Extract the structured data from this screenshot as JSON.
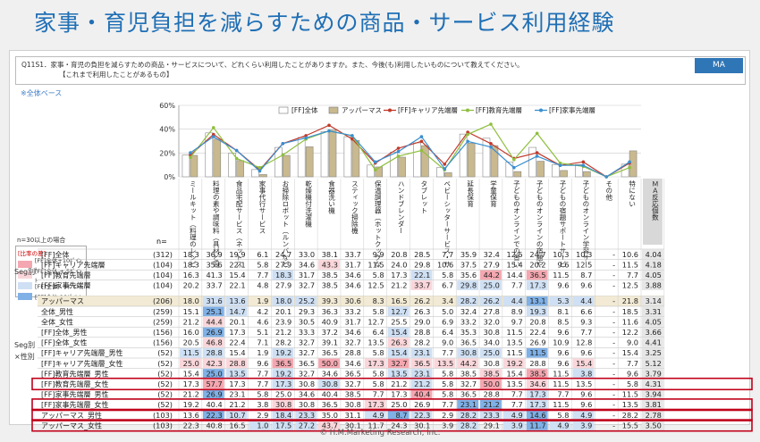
{
  "title": "家事・育児負担を減らすための商品・サービス利用経験",
  "question": {
    "line1": "Q11S1．家事・育児の負担を減らすための商品・サービスについて、どれくらい利用したことがありますか。また、今後(も)利用したいものについて教えてください。",
    "line2": "【これまで利用したことがあるもの】"
  },
  "badge": "MA",
  "base_note": "※全体ベース",
  "n_note": "n=30以上の場合",
  "n_label": "n=",
  "legend_diff": {
    "title": "[比率の差]",
    "items": [
      {
        "label": "[FF]全体+10ﾎﾟｲﾝﾄ",
        "color": "#f4a7b0"
      },
      {
        "label": "[FF]全体 + 5ﾎﾟｲﾝﾄ",
        "color": "#fad6da"
      },
      {
        "label": "[FF]全体 - 5ﾎﾟｲﾝﾄ",
        "color": "#cfe0f4"
      },
      {
        "label": "[FF]全体-10ﾎﾟｲﾝﾄ",
        "color": "#7fb0e6"
      }
    ]
  },
  "footer": "© H.M.Marketing Research, Inc.",
  "columns": [
    "ミールキット（料理のレシピと材料がセットになったもの）",
    "料理の素や調味料（具材と混ぜるだけ等）",
    "食品宅配サービス（ネットスーパー等）",
    "家事代行サービス",
    "お掃除ロボット（ルンバなど）",
    "乾燥機付洗濯機",
    "食器洗い機",
    "スティック掃除機",
    "保温調理器（ホットクックなど）",
    "ハンドブレンダー",
    "タブレット",
    "ベビーシッターサービス・サポート",
    "延長保育",
    "学童保育",
    "子どものオンラインでの習い事や塾",
    "子どものオンラインの宿題やドリル（タブレットやアプリ）",
    "子どもの宿題サポートサービス",
    "子どものオンライン学習サービス（教材が届いて自宅で学習できるもの）",
    "その他",
    "特にない",
    "ＭＡ反応個数"
  ],
  "segments": [
    {
      "label": "Seg別",
      "rows": [
        0,
        3
      ]
    },
    {
      "label": "Seg別 ×性別",
      "rows": [
        4,
        15
      ]
    }
  ],
  "rows": [
    {
      "label": "[FF]全体",
      "n": "(312)",
      "values": [
        "18.3",
        "36.9",
        "19.9",
        "6.1",
        "24.7",
        "33.0",
        "38.1",
        "33.7",
        "9.9",
        "20.8",
        "28.5",
        "7.7",
        "35.9",
        "32.4",
        "12.5",
        "24.7",
        "10.3",
        "10.3",
        "-",
        "10.6",
        "4.04"
      ]
    },
    {
      "label": "[FF]キャリア先端層",
      "n": "(104)",
      "values": [
        "18.3",
        "35.6",
        "22.1",
        "5.8",
        "27.9",
        "34.6",
        "43.3",
        "31.7",
        "11.5",
        "24.0",
        "29.8",
        "10.6",
        "37.5",
        "27.9",
        "15.4",
        "20.2",
        "9.6",
        "12.5",
        "-",
        "11.5",
        "4.18"
      ]
    },
    {
      "label": "[FF]教育先端層",
      "n": "(104)",
      "values": [
        "16.3",
        "41.3",
        "15.4",
        "7.7",
        "18.3",
        "31.7",
        "38.5",
        "34.6",
        "5.8",
        "17.3",
        "22.1",
        "5.8",
        "35.6",
        "44.2",
        "14.4",
        "36.5",
        "11.5",
        "8.7",
        "-",
        "7.7",
        "4.05"
      ]
    },
    {
      "label": "[FF]家事先端層",
      "n": "(104)",
      "values": [
        "20.2",
        "33.7",
        "22.1",
        "4.8",
        "27.9",
        "32.7",
        "38.5",
        "34.6",
        "12.5",
        "21.2",
        "33.7",
        "6.7",
        "29.8",
        "25.0",
        "7.7",
        "17.3",
        "9.6",
        "9.6",
        "-",
        "12.5",
        "3.88"
      ]
    },
    {
      "label": "アッパーマス",
      "n": "(206)",
      "values": [
        "18.0",
        "31.6",
        "13.6",
        "1.9",
        "18.0",
        "25.2",
        "39.3",
        "30.6",
        "8.3",
        "16.5",
        "26.2",
        "3.4",
        "28.2",
        "26.2",
        "4.4",
        "13.1",
        "5.3",
        "4.4",
        "-",
        "21.8",
        "3.14"
      ]
    },
    {
      "label": "全体_男性",
      "n": "(259)",
      "values": [
        "15.1",
        "25.1",
        "14.7",
        "4.2",
        "20.1",
        "29.3",
        "36.3",
        "33.2",
        "5.8",
        "12.7",
        "26.3",
        "5.0",
        "32.4",
        "27.8",
        "8.9",
        "19.3",
        "8.1",
        "6.6",
        "-",
        "18.5",
        "3.31"
      ]
    },
    {
      "label": "全体_女性",
      "n": "(259)",
      "values": [
        "21.2",
        "44.4",
        "20.1",
        "4.6",
        "23.9",
        "30.5",
        "40.9",
        "31.7",
        "12.7",
        "25.5",
        "29.0",
        "6.9",
        "33.2",
        "32.0",
        "9.7",
        "20.8",
        "8.5",
        "9.3",
        "-",
        "11.6",
        "4.05"
      ]
    },
    {
      "label": "[FF]全体_男性",
      "n": "(156)",
      "values": [
        "16.0",
        "26.9",
        "17.3",
        "5.1",
        "21.2",
        "33.3",
        "37.2",
        "34.6",
        "6.4",
        "15.4",
        "28.8",
        "6.4",
        "35.3",
        "30.8",
        "11.5",
        "22.4",
        "9.6",
        "7.7",
        "-",
        "12.2",
        "3.66"
      ]
    },
    {
      "label": "[FF]全体_女性",
      "n": "(156)",
      "values": [
        "20.5",
        "46.8",
        "22.4",
        "7.1",
        "28.2",
        "32.7",
        "39.1",
        "32.7",
        "13.5",
        "26.3",
        "28.2",
        "9.0",
        "36.5",
        "34.0",
        "13.5",
        "26.9",
        "10.9",
        "12.8",
        "-",
        "9.0",
        "4.41"
      ]
    },
    {
      "label": "[FF]キャリア先端層_男性",
      "n": "(52)",
      "values": [
        "11.5",
        "28.8",
        "15.4",
        "1.9",
        "19.2",
        "32.7",
        "36.5",
        "28.8",
        "5.8",
        "15.4",
        "23.1",
        "7.7",
        "30.8",
        "25.0",
        "11.5",
        "11.5",
        "9.6",
        "9.6",
        "-",
        "15.4",
        "3.25"
      ]
    },
    {
      "label": "[FF]キャリア先端層_女性",
      "n": "(52)",
      "values": [
        "25.0",
        "42.3",
        "28.8",
        "9.6",
        "36.5",
        "36.5",
        "50.0",
        "34.6",
        "17.3",
        "32.7",
        "36.5",
        "13.5",
        "44.2",
        "30.8",
        "19.2",
        "28.8",
        "9.6",
        "15.4",
        "-",
        "7.7",
        "5.12"
      ]
    },
    {
      "label": "[FF]教育先端層_男性",
      "n": "(52)",
      "values": [
        "15.4",
        "25.0",
        "13.5",
        "7.7",
        "19.2",
        "32.7",
        "34.6",
        "36.5",
        "5.8",
        "13.5",
        "23.1",
        "5.8",
        "38.5",
        "38.5",
        "15.4",
        "38.5",
        "11.5",
        "3.8",
        "-",
        "9.6",
        "3.79"
      ]
    },
    {
      "label": "[FF]教育先端層_女性",
      "n": "(52)",
      "values": [
        "17.3",
        "57.7",
        "17.3",
        "7.7",
        "17.3",
        "30.8",
        "30.8",
        "32.7",
        "5.8",
        "21.2",
        "21.2",
        "5.8",
        "32.7",
        "50.0",
        "13.5",
        "34.6",
        "11.5",
        "13.5",
        "-",
        "5.8",
        "4.31"
      ]
    },
    {
      "label": "[FF]家事先端層_男性",
      "n": "(52)",
      "values": [
        "21.2",
        "26.9",
        "23.1",
        "5.8",
        "25.0",
        "34.6",
        "40.4",
        "38.5",
        "7.7",
        "17.3",
        "40.4",
        "5.8",
        "36.5",
        "28.8",
        "7.7",
        "17.3",
        "7.7",
        "9.6",
        "-",
        "11.5",
        "3.94"
      ]
    },
    {
      "label": "[FF]家事先端層_女性",
      "n": "(52)",
      "values": [
        "19.2",
        "40.4",
        "21.2",
        "3.8",
        "30.8",
        "30.8",
        "36.5",
        "30.8",
        "17.3",
        "25.0",
        "26.9",
        "7.7",
        "23.1",
        "21.2",
        "7.7",
        "17.3",
        "11.5",
        "9.6",
        "-",
        "13.5",
        "3.81"
      ]
    },
    {
      "label": "アッパーマス_男性",
      "n": "(103)",
      "values": [
        "13.6",
        "22.3",
        "10.7",
        "2.9",
        "18.4",
        "23.3",
        "35.0",
        "31.1",
        "4.9",
        "8.7",
        "22.3",
        "2.9",
        "28.2",
        "23.3",
        "4.9",
        "14.6",
        "5.8",
        "4.9",
        "-",
        "28.2",
        "2.78"
      ]
    },
    {
      "label": "アッパーマス_女性",
      "n": "(103)",
      "values": [
        "22.3",
        "40.8",
        "16.5",
        "1.0",
        "17.5",
        "27.2",
        "43.7",
        "30.1",
        "11.7",
        "24.3",
        "30.1",
        "3.9",
        "28.2",
        "29.1",
        "3.9",
        "11.7",
        "4.9",
        "3.9",
        "-",
        "15.5",
        "3.50"
      ]
    }
  ],
  "highlight_rows": [
    12,
    14,
    15,
    16
  ],
  "chart_data": {
    "type": "bar",
    "ylim": [
      0,
      60
    ],
    "yticks": [
      "0%",
      "20%",
      "40%",
      "60%"
    ],
    "legend": [
      "[FF]全体",
      "アッパーマス",
      "[FF]キャリア先端層",
      "[FF]教育先端層",
      "[FF]家事先端層"
    ],
    "categories_count": 20,
    "series": [
      {
        "name": "[FF]全体",
        "kind": "bar",
        "color": "#ffffff",
        "values": [
          18.3,
          36.9,
          19.9,
          6.1,
          24.7,
          33.0,
          38.1,
          33.7,
          9.9,
          20.8,
          28.5,
          7.7,
          35.9,
          32.4,
          12.5,
          24.7,
          10.3,
          10.3,
          0,
          10.6
        ]
      },
      {
        "name": "アッパーマス",
        "kind": "bar",
        "color": "#c9b98f",
        "values": [
          18.0,
          31.6,
          13.6,
          1.9,
          18.0,
          25.2,
          39.3,
          30.6,
          8.3,
          16.5,
          26.2,
          3.4,
          28.2,
          26.2,
          4.4,
          13.1,
          5.3,
          4.4,
          0,
          21.8
        ]
      },
      {
        "name": "[FF]キャリア先端層",
        "kind": "line",
        "color": "#c0392b",
        "values": [
          18.3,
          35.6,
          22.1,
          5.8,
          27.9,
          34.6,
          43.3,
          31.7,
          11.5,
          24.0,
          29.8,
          10.6,
          37.5,
          27.9,
          15.4,
          20.2,
          9.6,
          12.5,
          0,
          11.5
        ]
      },
      {
        "name": "[FF]教育先端層",
        "kind": "line",
        "color": "#8fbf3f",
        "values": [
          16.3,
          41.3,
          15.4,
          7.7,
          18.3,
          31.7,
          38.5,
          34.6,
          5.8,
          17.3,
          22.1,
          5.8,
          35.6,
          44.2,
          14.4,
          36.5,
          11.5,
          8.7,
          0,
          7.7
        ]
      },
      {
        "name": "[FF]家事先端層",
        "kind": "line",
        "color": "#3a8fd0",
        "values": [
          20.2,
          33.7,
          22.1,
          4.8,
          27.9,
          32.7,
          38.5,
          34.6,
          12.5,
          21.2,
          33.7,
          6.7,
          29.8,
          25.0,
          7.7,
          17.3,
          9.6,
          9.6,
          0,
          12.5
        ]
      }
    ]
  }
}
